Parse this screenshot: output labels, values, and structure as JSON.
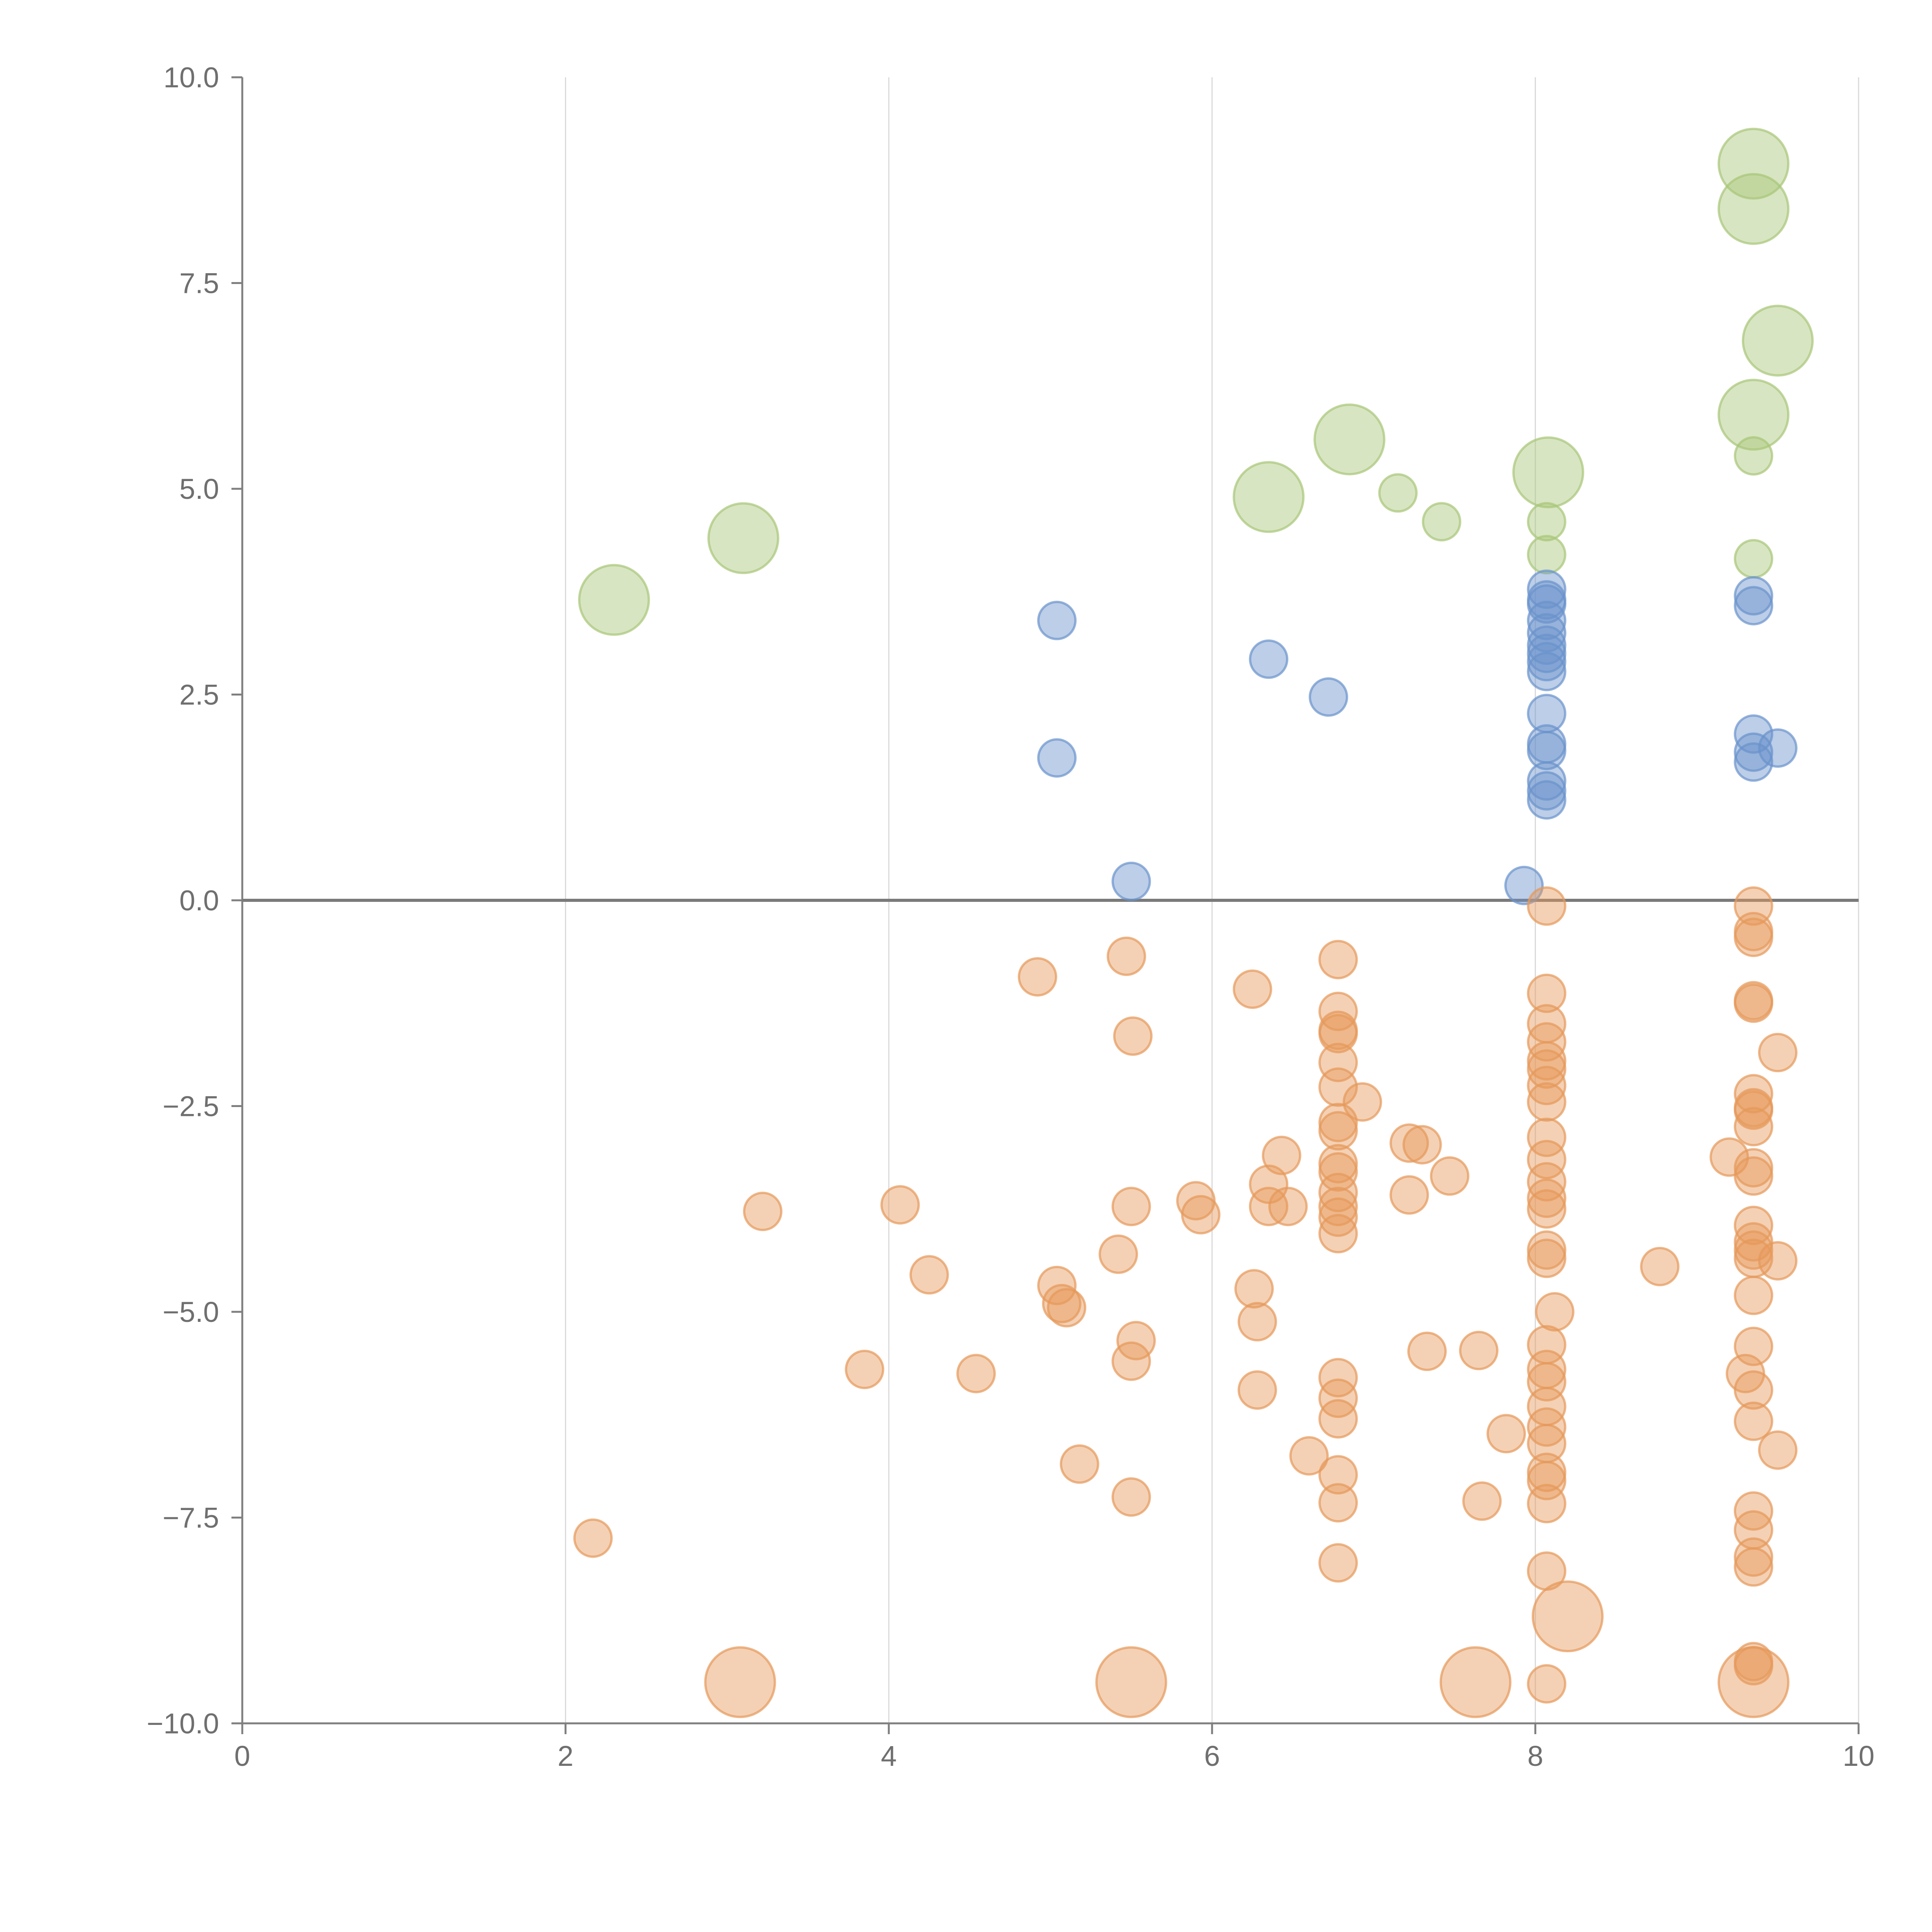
{
  "chart_data": {
    "type": "scatter",
    "title": "",
    "xlabel": "",
    "ylabel": "",
    "xlim": [
      0,
      10
    ],
    "ylim": [
      -10,
      10
    ],
    "x_ticks": [
      "0",
      "2",
      "4",
      "6",
      "8",
      "10"
    ],
    "y_ticks": [
      "10.0",
      "7.5",
      "5.0",
      "2.5",
      "0.0",
      "−2.5",
      "−5.0",
      "−7.5",
      "−10.0"
    ],
    "grid": "vertical",
    "zero_line": true,
    "series": [
      {
        "color": "#a8c678",
        "points": [
          [
            2.3,
            3.65,
            "large"
          ],
          [
            3.1,
            4.4,
            "large"
          ],
          [
            6.35,
            4.9,
            "large"
          ],
          [
            6.85,
            5.6,
            "large"
          ],
          [
            8.08,
            5.2,
            "large"
          ],
          [
            9.35,
            8.95,
            "large"
          ],
          [
            9.35,
            8.4,
            "large"
          ],
          [
            9.5,
            6.8,
            "large"
          ],
          [
            9.35,
            5.9,
            "large"
          ],
          [
            7.15,
            4.95,
            "small"
          ],
          [
            7.42,
            4.6,
            "small"
          ],
          [
            8.07,
            4.6,
            "small"
          ],
          [
            8.07,
            4.2,
            "small"
          ],
          [
            9.35,
            5.4,
            "small"
          ],
          [
            9.35,
            4.15,
            "small"
          ]
        ]
      },
      {
        "color": "#6a93cc",
        "points": [
          [
            5.04,
            3.4
          ],
          [
            5.04,
            1.73
          ],
          [
            6.35,
            2.93
          ],
          [
            6.72,
            2.47
          ],
          [
            5.5,
            0.23
          ],
          [
            7.93,
            0.18
          ],
          [
            8.07,
            3.78
          ],
          [
            8.07,
            3.65
          ],
          [
            8.07,
            3.6
          ],
          [
            8.07,
            3.4
          ],
          [
            8.07,
            3.25
          ],
          [
            8.07,
            3.1
          ],
          [
            8.07,
            3.0
          ],
          [
            8.07,
            2.9
          ],
          [
            8.07,
            2.78
          ],
          [
            8.07,
            2.27
          ],
          [
            8.07,
            1.9
          ],
          [
            8.07,
            1.82
          ],
          [
            8.07,
            1.45
          ],
          [
            8.07,
            1.33
          ],
          [
            8.07,
            1.22
          ],
          [
            9.35,
            3.7
          ],
          [
            9.35,
            3.58
          ],
          [
            9.35,
            2.02
          ],
          [
            9.35,
            1.8
          ],
          [
            9.35,
            1.68
          ],
          [
            9.5,
            1.85
          ]
        ]
      },
      {
        "color": "#e6995a",
        "points": [
          [
            2.17,
            -7.75,
            "small"
          ],
          [
            3.22,
            -3.78,
            "small"
          ],
          [
            3.85,
            -5.7,
            "small"
          ],
          [
            4.07,
            -3.7,
            "small"
          ],
          [
            4.25,
            -4.55,
            "small"
          ],
          [
            4.54,
            -5.75,
            "small"
          ],
          [
            4.92,
            -0.93,
            "small"
          ],
          [
            5.04,
            -4.68,
            "small"
          ],
          [
            5.1,
            -4.95,
            "small"
          ],
          [
            5.07,
            -4.9,
            "small"
          ],
          [
            5.18,
            -6.85,
            "small"
          ],
          [
            5.42,
            -4.3,
            "small"
          ],
          [
            5.47,
            -0.68,
            "small"
          ],
          [
            5.51,
            -1.65,
            "small"
          ],
          [
            5.5,
            -3.72,
            "small"
          ],
          [
            5.53,
            -5.35,
            "small"
          ],
          [
            5.5,
            -5.6,
            "small"
          ],
          [
            5.5,
            -7.25,
            "small"
          ],
          [
            5.9,
            -3.65,
            "small"
          ],
          [
            5.93,
            -3.82,
            "small"
          ],
          [
            6.25,
            -1.08,
            "small"
          ],
          [
            6.26,
            -4.72,
            "small"
          ],
          [
            6.28,
            -5.12,
            "small"
          ],
          [
            6.28,
            -5.95,
            "small"
          ],
          [
            6.35,
            -3.45,
            "small"
          ],
          [
            6.35,
            -3.72,
            "small"
          ],
          [
            6.43,
            -3.1,
            "small"
          ],
          [
            6.47,
            -3.72,
            "small"
          ],
          [
            6.6,
            -6.75,
            "small"
          ],
          [
            6.78,
            -0.72,
            "small"
          ],
          [
            6.78,
            -1.35,
            "small"
          ],
          [
            6.78,
            -1.58,
            "small"
          ],
          [
            6.78,
            -1.62,
            "small"
          ],
          [
            6.78,
            -1.97,
            "small"
          ],
          [
            6.78,
            -2.27,
            "small"
          ],
          [
            6.78,
            -2.7,
            "small"
          ],
          [
            6.78,
            -2.8,
            "small"
          ],
          [
            6.78,
            -3.2,
            "small"
          ],
          [
            6.78,
            -3.3,
            "small"
          ],
          [
            6.78,
            -3.55,
            "small"
          ],
          [
            6.78,
            -3.72,
            "small"
          ],
          [
            6.78,
            -3.85,
            "small"
          ],
          [
            6.78,
            -4.05,
            "small"
          ],
          [
            6.78,
            -5.8,
            "small"
          ],
          [
            6.78,
            -6.05,
            "small"
          ],
          [
            6.78,
            -6.3,
            "small"
          ],
          [
            6.78,
            -6.98,
            "small"
          ],
          [
            6.78,
            -7.32,
            "small"
          ],
          [
            6.78,
            -8.05,
            "small"
          ],
          [
            6.93,
            -2.45,
            "small"
          ],
          [
            7.22,
            -2.95,
            "small"
          ],
          [
            7.22,
            -3.58,
            "small"
          ],
          [
            7.3,
            -2.97,
            "small"
          ],
          [
            7.33,
            -5.48,
            "small"
          ],
          [
            7.47,
            -3.35,
            "small"
          ],
          [
            7.65,
            -5.47,
            "small"
          ],
          [
            7.67,
            -7.3,
            "small"
          ],
          [
            7.82,
            -6.48,
            "small"
          ],
          [
            8.07,
            -0.07,
            "small"
          ],
          [
            8.07,
            -1.13,
            "small"
          ],
          [
            8.07,
            -1.5,
            "small"
          ],
          [
            8.07,
            -1.72,
            "small"
          ],
          [
            8.07,
            -1.95,
            "small"
          ],
          [
            8.07,
            -2.05,
            "small"
          ],
          [
            8.07,
            -2.25,
            "small"
          ],
          [
            8.07,
            -2.45,
            "small"
          ],
          [
            8.07,
            -2.88,
            "small"
          ],
          [
            8.07,
            -3.15,
            "small"
          ],
          [
            8.07,
            -3.42,
            "small"
          ],
          [
            8.07,
            -3.62,
            "small"
          ],
          [
            8.07,
            -3.75,
            "small"
          ],
          [
            8.07,
            -4.25,
            "small"
          ],
          [
            8.07,
            -4.35,
            "small"
          ],
          [
            8.07,
            -5.4,
            "small"
          ],
          [
            8.07,
            -5.7,
            "small"
          ],
          [
            8.07,
            -5.85,
            "small"
          ],
          [
            8.07,
            -6.15,
            "small"
          ],
          [
            8.07,
            -6.4,
            "small"
          ],
          [
            8.07,
            -6.6,
            "small"
          ],
          [
            8.07,
            -6.95,
            "small"
          ],
          [
            8.07,
            -7.05,
            "small"
          ],
          [
            8.07,
            -7.33,
            "small"
          ],
          [
            8.07,
            -8.15,
            "small"
          ],
          [
            8.07,
            -9.52,
            "small"
          ],
          [
            8.12,
            -5.0,
            "small"
          ],
          [
            8.77,
            -4.45,
            "small"
          ],
          [
            9.2,
            -3.12,
            "small"
          ],
          [
            9.3,
            -5.75,
            "small"
          ],
          [
            9.35,
            -0.07,
            "small"
          ],
          [
            9.35,
            -0.38,
            "small"
          ],
          [
            9.35,
            -0.45,
            "small"
          ],
          [
            9.35,
            -1.22,
            "small"
          ],
          [
            9.35,
            -1.25,
            "small"
          ],
          [
            9.35,
            -2.35,
            "small"
          ],
          [
            9.35,
            -2.52,
            "small"
          ],
          [
            9.35,
            -2.55,
            "small"
          ],
          [
            9.35,
            -2.75,
            "small"
          ],
          [
            9.35,
            -3.25,
            "small"
          ],
          [
            9.35,
            -3.35,
            "small"
          ],
          [
            9.35,
            -3.95,
            "small"
          ],
          [
            9.35,
            -4.15,
            "small"
          ],
          [
            9.35,
            -4.25,
            "small"
          ],
          [
            9.35,
            -4.35,
            "small"
          ],
          [
            9.35,
            -4.8,
            "small"
          ],
          [
            9.35,
            -5.42,
            "small"
          ],
          [
            9.35,
            -5.95,
            "small"
          ],
          [
            9.35,
            -6.33,
            "small"
          ],
          [
            9.35,
            -7.42,
            "small"
          ],
          [
            9.35,
            -7.65,
            "small"
          ],
          [
            9.35,
            -7.98,
            "small"
          ],
          [
            9.35,
            -8.1,
            "small"
          ],
          [
            9.35,
            -9.25,
            "small"
          ],
          [
            9.35,
            -9.3,
            "small"
          ],
          [
            9.5,
            -1.85,
            "small"
          ],
          [
            9.5,
            -4.38,
            "small"
          ],
          [
            9.5,
            -6.68,
            "small"
          ],
          [
            3.08,
            -9.5,
            "large"
          ],
          [
            5.5,
            -9.5,
            "large"
          ],
          [
            7.63,
            -9.5,
            "large"
          ],
          [
            8.2,
            -8.7,
            "large"
          ],
          [
            9.35,
            -9.5,
            "large"
          ]
        ]
      }
    ]
  }
}
